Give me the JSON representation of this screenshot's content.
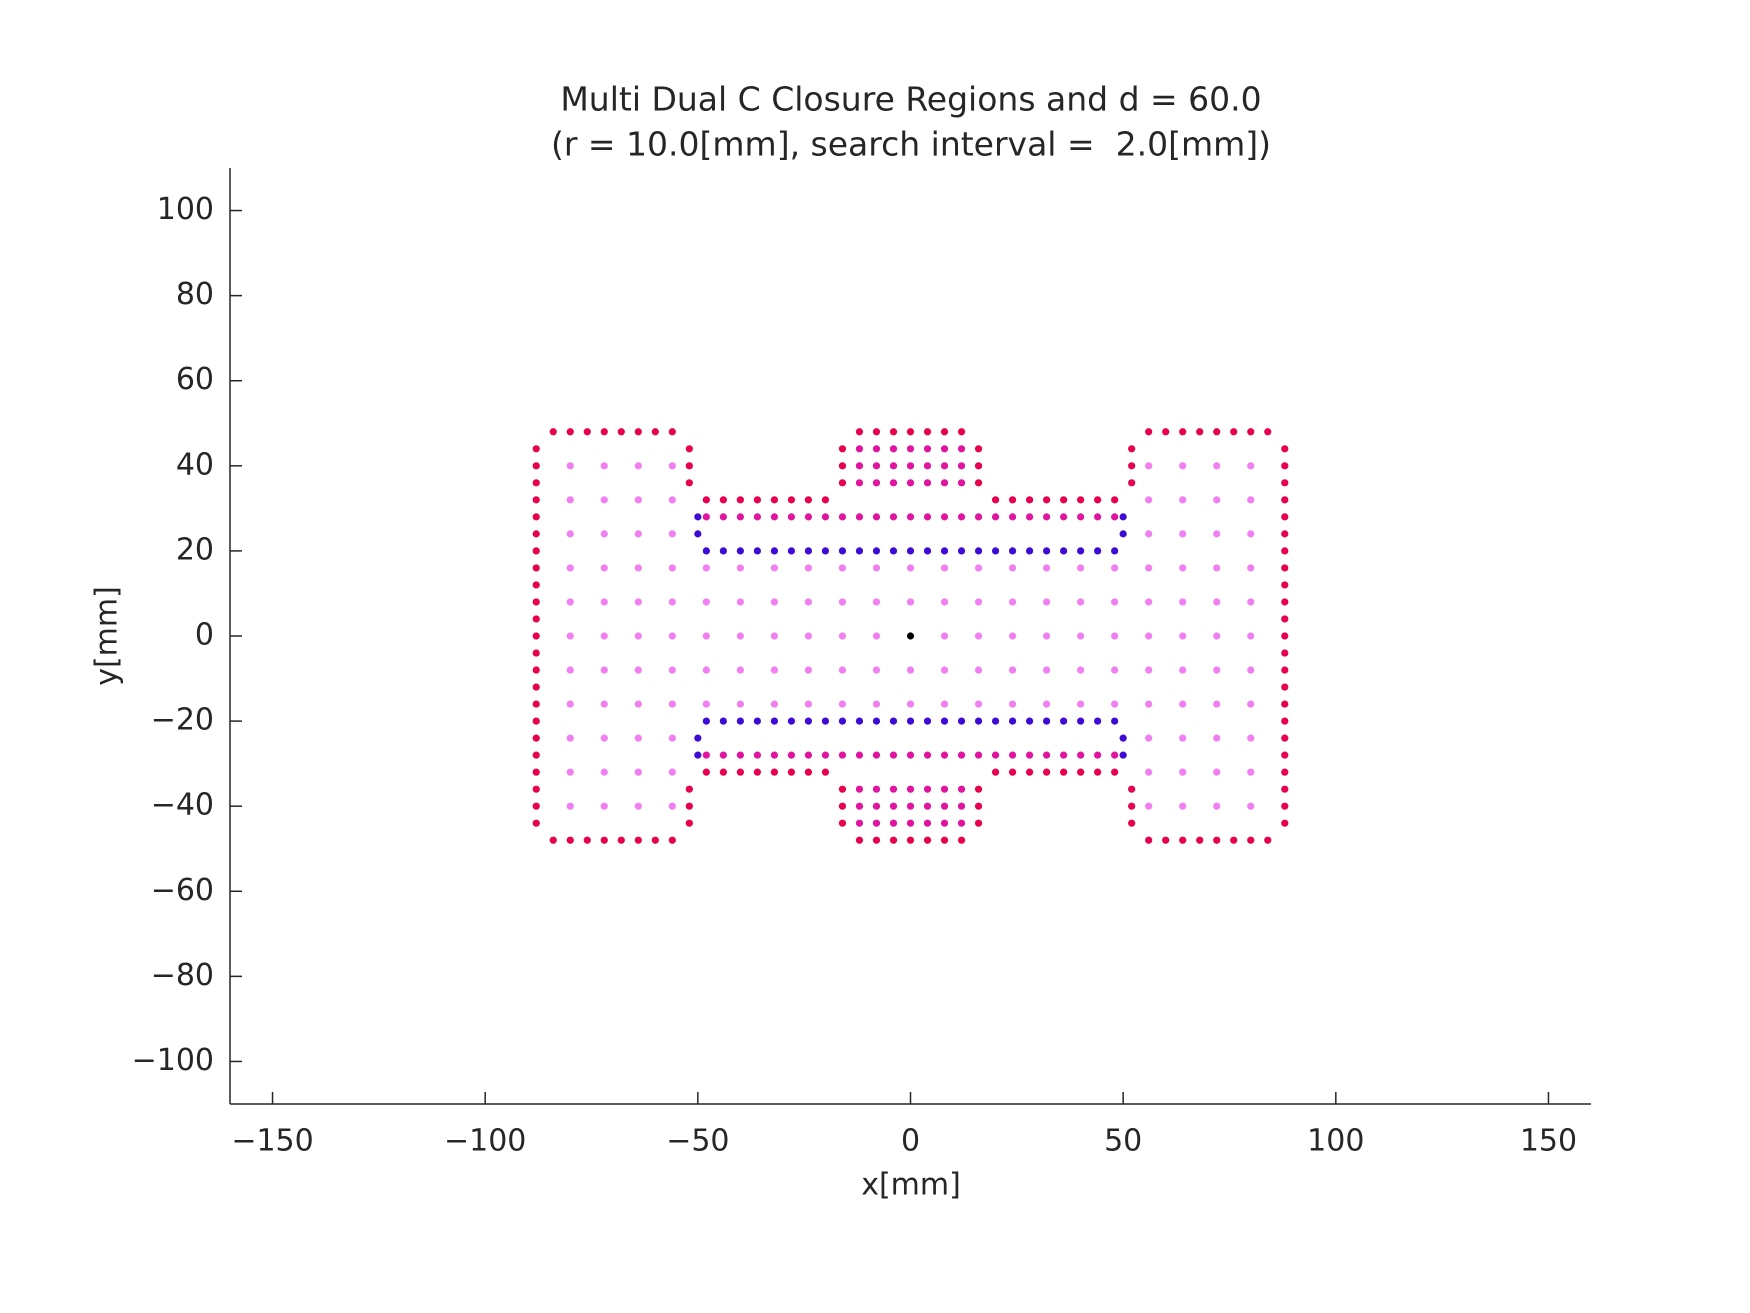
{
  "chart_data": {
    "type": "scatter",
    "title": "Multi Dual C Closure Regions and d = 60.0",
    "subtitle": "(r = 10.0[mm], search interval =  2.0[mm])",
    "x_label": "x[mm]",
    "y_label": "y[mm]",
    "xlim": [
      -160,
      160
    ],
    "ylim": [
      -110,
      110
    ],
    "xticks": [
      {
        "value": -150,
        "label": "−150"
      },
      {
        "value": -100,
        "label": "−100"
      },
      {
        "value": -50,
        "label": "−50"
      },
      0,
      50,
      100,
      150
    ],
    "yticks": [
      {
        "value": -100,
        "label": "−100"
      },
      {
        "value": -80,
        "label": "−80"
      },
      {
        "value": -60,
        "label": "−60"
      },
      {
        "value": -40,
        "label": "−40"
      },
      {
        "value": -20,
        "label": "−20"
      },
      0,
      20,
      40,
      60,
      80,
      100
    ],
    "series": [
      {
        "color": "#f27ff2",
        "x": [
          -80,
          -80,
          -80,
          -80,
          -80,
          -80,
          -80,
          -80,
          -80,
          -80,
          -80,
          -72,
          -72,
          -72,
          -72,
          -72,
          -72,
          -72,
          -72,
          -72,
          -72,
          -72,
          -64,
          -64,
          -64,
          -64,
          -64,
          -64,
          -64,
          -64,
          -64,
          -64,
          -64,
          -56,
          -56,
          -56,
          -56,
          -56,
          -56,
          -56,
          -56,
          -56,
          -56,
          -56,
          56,
          56,
          56,
          56,
          56,
          56,
          56,
          56,
          56,
          56,
          56,
          64,
          64,
          64,
          64,
          64,
          64,
          64,
          64,
          64,
          64,
          64,
          72,
          72,
          72,
          72,
          72,
          72,
          72,
          72,
          72,
          72,
          72,
          80,
          80,
          80,
          80,
          80,
          80,
          80,
          80,
          80,
          80,
          80,
          -48,
          -48,
          -48,
          -48,
          -48,
          -40,
          -40,
          -40,
          -40,
          -40,
          -32,
          -32,
          -32,
          -32,
          -32,
          -24,
          -24,
          -24,
          -24,
          -24,
          -16,
          -16,
          -16,
          -16,
          -16,
          -8,
          -8,
          -8,
          -8,
          -8,
          0,
          0,
          0,
          0,
          8,
          8,
          8,
          8,
          8,
          16,
          16,
          16,
          16,
          16,
          24,
          24,
          24,
          24,
          24,
          32,
          32,
          32,
          32,
          32,
          40,
          40,
          40,
          40,
          40,
          48,
          48,
          48,
          48,
          48
        ],
        "values": [
          -40,
          -32,
          -24,
          -16,
          -8,
          0,
          8,
          16,
          24,
          32,
          40,
          -40,
          -32,
          -24,
          -16,
          -8,
          0,
          8,
          16,
          24,
          32,
          40,
          -40,
          -32,
          -24,
          -16,
          -8,
          0,
          8,
          16,
          24,
          32,
          40,
          -40,
          -32,
          -24,
          -16,
          -8,
          0,
          8,
          16,
          24,
          32,
          40,
          -40,
          -32,
          -24,
          -16,
          -8,
          0,
          8,
          16,
          24,
          32,
          40,
          -40,
          -32,
          -24,
          -16,
          -8,
          0,
          8,
          16,
          24,
          32,
          40,
          -40,
          -32,
          -24,
          -16,
          -8,
          0,
          8,
          16,
          24,
          32,
          40,
          -40,
          -32,
          -24,
          -16,
          -8,
          0,
          8,
          16,
          24,
          32,
          40,
          -16,
          -8,
          0,
          8,
          16,
          -16,
          -8,
          0,
          8,
          16,
          -16,
          -8,
          0,
          8,
          16,
          -16,
          -8,
          0,
          8,
          16,
          -16,
          -8,
          0,
          8,
          16,
          -16,
          -8,
          0,
          8,
          16,
          -16,
          -8,
          8,
          16,
          -16,
          -8,
          0,
          8,
          16,
          -16,
          -8,
          0,
          8,
          16,
          -16,
          -8,
          0,
          8,
          16,
          -16,
          -8,
          0,
          8,
          16,
          -16,
          -8,
          0,
          8,
          16,
          -16,
          -8,
          0,
          8,
          16
        ]
      },
      {
        "color": "#e0149e",
        "x": [
          -12,
          -8,
          -4,
          0,
          4,
          8,
          12,
          -12,
          -8,
          -4,
          0,
          4,
          8,
          12,
          -12,
          -8,
          -4,
          0,
          4,
          8,
          12,
          -12,
          -8,
          -4,
          0,
          4,
          8,
          12,
          -12,
          -8,
          -4,
          0,
          4,
          8,
          12,
          -12,
          -8,
          -4,
          0,
          4,
          8,
          12,
          -48,
          -44,
          -40,
          -36,
          -32,
          -28,
          -24,
          -20,
          -16,
          -12,
          -8,
          -4,
          0,
          4,
          8,
          12,
          16,
          20,
          24,
          28,
          32,
          36,
          40,
          44,
          48,
          -48,
          -44,
          -40,
          -36,
          -32,
          -28,
          -24,
          -20,
          -16,
          -12,
          -8,
          -4,
          0,
          4,
          8,
          12,
          16,
          20,
          24,
          28,
          32,
          36,
          40,
          44,
          48
        ],
        "values": [
          36,
          36,
          36,
          36,
          36,
          36,
          36,
          40,
          40,
          40,
          40,
          40,
          40,
          40,
          44,
          44,
          44,
          44,
          44,
          44,
          44,
          -36,
          -36,
          -36,
          -36,
          -36,
          -36,
          -36,
          -40,
          -40,
          -40,
          -40,
          -40,
          -40,
          -40,
          -44,
          -44,
          -44,
          -44,
          -44,
          -44,
          -44,
          28,
          28,
          28,
          28,
          28,
          28,
          28,
          28,
          28,
          28,
          28,
          28,
          28,
          28,
          28,
          28,
          28,
          28,
          28,
          28,
          28,
          28,
          28,
          28,
          28,
          -28,
          -28,
          -28,
          -28,
          -28,
          -28,
          -28,
          -28,
          -28,
          -28,
          -28,
          -28,
          -28,
          -28,
          -28,
          -28,
          -28,
          -28,
          -28,
          -28,
          -28,
          -28,
          -28,
          -28,
          -28
        ]
      },
      {
        "color": "#e8004f",
        "x": [
          -84,
          -80,
          -76,
          -72,
          -68,
          -64,
          -60,
          -56,
          -12,
          -8,
          -4,
          0,
          4,
          8,
          12,
          56,
          60,
          64,
          68,
          72,
          76,
          80,
          84,
          -84,
          -80,
          -76,
          -72,
          -68,
          -64,
          -60,
          -56,
          -12,
          -8,
          -4,
          0,
          4,
          8,
          12,
          56,
          60,
          64,
          68,
          72,
          76,
          80,
          84,
          -88,
          -88,
          -88,
          -88,
          -88,
          -88,
          -88,
          -88,
          -88,
          -88,
          -88,
          -88,
          -88,
          -88,
          -88,
          -88,
          -88,
          -88,
          -88,
          -88,
          -88,
          -88,
          -88,
          88,
          88,
          88,
          88,
          88,
          88,
          88,
          88,
          88,
          88,
          88,
          88,
          88,
          88,
          88,
          88,
          88,
          88,
          88,
          88,
          88,
          88,
          88,
          -52,
          -52,
          -52,
          -52,
          -52,
          -52,
          52,
          52,
          52,
          52,
          52,
          52,
          -16,
          -16,
          -16,
          -16,
          -16,
          -16,
          16,
          16,
          16,
          16,
          16,
          16,
          -48,
          -44,
          -40,
          -36,
          -32,
          -28,
          -24,
          -20,
          20,
          24,
          28,
          32,
          36,
          40,
          44,
          48,
          -48,
          -44,
          -40,
          -36,
          -32,
          -28,
          -24,
          -20,
          20,
          24,
          28,
          32,
          36,
          40,
          44,
          48
        ],
        "values": [
          48,
          48,
          48,
          48,
          48,
          48,
          48,
          48,
          48,
          48,
          48,
          48,
          48,
          48,
          48,
          48,
          48,
          48,
          48,
          48,
          48,
          48,
          48,
          -48,
          -48,
          -48,
          -48,
          -48,
          -48,
          -48,
          -48,
          -48,
          -48,
          -48,
          -48,
          -48,
          -48,
          -48,
          -48,
          -48,
          -48,
          -48,
          -48,
          -48,
          -48,
          -48,
          -44,
          -40,
          -36,
          -32,
          -28,
          -24,
          -20,
          -16,
          -12,
          -8,
          -4,
          0,
          4,
          8,
          12,
          16,
          20,
          24,
          28,
          32,
          36,
          40,
          44,
          -44,
          -40,
          -36,
          -32,
          -28,
          -24,
          -20,
          -16,
          -12,
          -8,
          -4,
          0,
          4,
          8,
          12,
          16,
          20,
          24,
          28,
          32,
          36,
          40,
          44,
          36,
          40,
          44,
          -36,
          -40,
          -44,
          36,
          40,
          44,
          -36,
          -40,
          -44,
          36,
          40,
          44,
          -36,
          -40,
          -44,
          36,
          40,
          44,
          -36,
          -40,
          -44,
          32,
          32,
          32,
          32,
          32,
          32,
          32,
          32,
          32,
          32,
          32,
          32,
          32,
          32,
          32,
          32,
          -32,
          -32,
          -32,
          -32,
          -32,
          -32,
          -32,
          -32,
          -32,
          -32,
          -32,
          -32,
          -32,
          -32,
          -32,
          -32
        ]
      },
      {
        "color": "#3d0ad6",
        "x": [
          -48,
          -44,
          -40,
          -36,
          -32,
          -28,
          -24,
          -20,
          -16,
          -12,
          -8,
          -4,
          0,
          4,
          8,
          12,
          16,
          20,
          24,
          28,
          32,
          36,
          40,
          44,
          48,
          -48,
          -44,
          -40,
          -36,
          -32,
          -28,
          -24,
          -20,
          -16,
          -12,
          -8,
          -4,
          0,
          4,
          8,
          12,
          16,
          20,
          24,
          28,
          32,
          36,
          40,
          44,
          48,
          -50,
          -50,
          -50,
          -50,
          50,
          50,
          50,
          50
        ],
        "values": [
          20,
          20,
          20,
          20,
          20,
          20,
          20,
          20,
          20,
          20,
          20,
          20,
          20,
          20,
          20,
          20,
          20,
          20,
          20,
          20,
          20,
          20,
          20,
          20,
          20,
          -20,
          -20,
          -20,
          -20,
          -20,
          -20,
          -20,
          -20,
          -20,
          -20,
          -20,
          -20,
          -20,
          -20,
          -20,
          -20,
          -20,
          -20,
          -20,
          -20,
          -20,
          -20,
          -20,
          -20,
          -20,
          24,
          28,
          -24,
          -28,
          24,
          28,
          -24,
          -28
        ]
      },
      {
        "color": "#000000",
        "x": [
          0
        ],
        "values": [
          0
        ]
      }
    ]
  }
}
